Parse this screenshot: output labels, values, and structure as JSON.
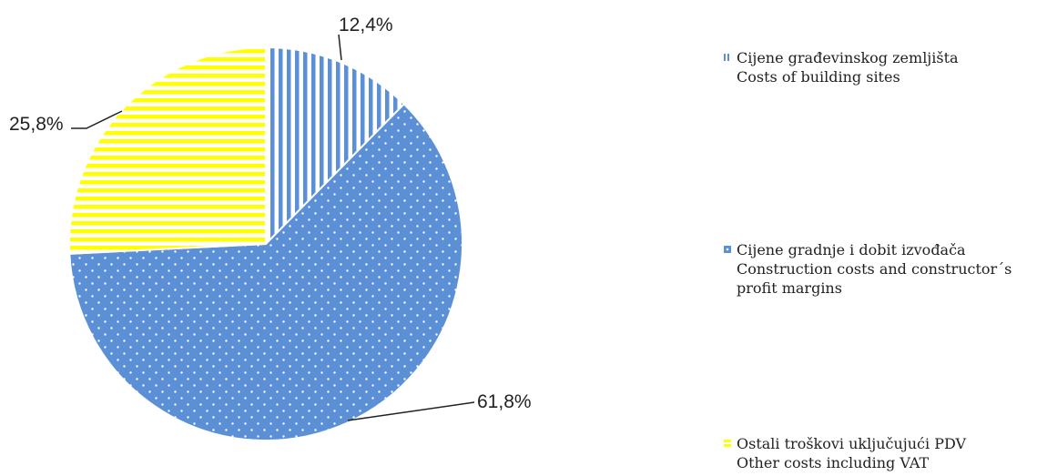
{
  "chart_data": {
    "type": "pie",
    "slices": [
      {
        "label_hr": "Cijene građevinskog zemljišta",
        "label_en": "Costs of building sites",
        "value": 12.4,
        "value_label": "12,4%",
        "color": "#5b8fd6",
        "pattern": "vertical-stripes"
      },
      {
        "label_hr": "Cijene gradnje i dobit izvođača",
        "label_en": "Construction costs and constructor´s profit margins",
        "value": 61.8,
        "value_label": "61,8%",
        "color": "#5b8fd6",
        "pattern": "dots"
      },
      {
        "label_hr": "Ostali troškovi uključujući PDV",
        "label_en": "Other costs including VAT",
        "value": 25.8,
        "value_label": "25,8%",
        "color": "#ffff00",
        "pattern": "horizontal-stripes"
      }
    ],
    "legend_position": "right",
    "start_angle": "12 o'clock",
    "direction": "clockwise"
  }
}
